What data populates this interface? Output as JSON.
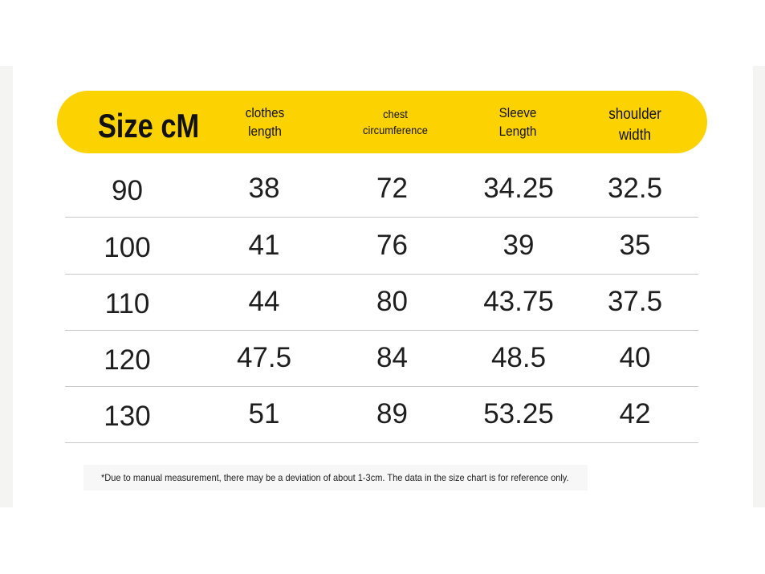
{
  "colors": {
    "header_yellow": "#fcd200",
    "row_divider": "#c8c8c8",
    "text": "#1e1e1e",
    "side_band": "#f4f4f2"
  },
  "table": {
    "headers": {
      "size": "Size cM",
      "clothes_length": "clothes\nlength",
      "chest": "chest\ncircumference",
      "sleeve": "Sleeve\nLength",
      "shoulder": "shoulder\nwidth"
    },
    "rows": [
      [
        "90",
        "38",
        "72",
        "34.25",
        "32.5"
      ],
      [
        "100",
        "41",
        "76",
        "39",
        "35"
      ],
      [
        "110",
        "44",
        "80",
        "43.75",
        "37.5"
      ],
      [
        "120",
        "47.5",
        "84",
        "48.5",
        "40"
      ],
      [
        "130",
        "51",
        "89",
        "53.25",
        "42"
      ]
    ]
  },
  "note": "*Due to manual measurement, there may be a deviation of about 1-3cm. The data in the size chart is for reference only."
}
